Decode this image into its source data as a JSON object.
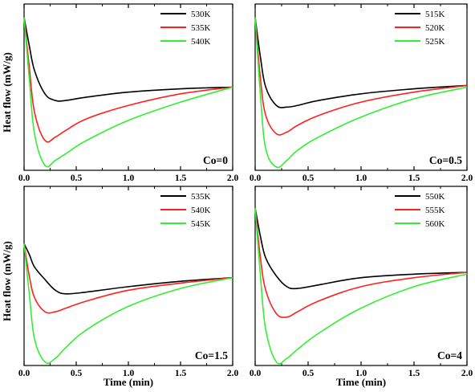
{
  "figure": {
    "ylabel": "Heat flow (mW/g)",
    "xlabel": "Time (min)"
  },
  "chart_data": [
    {
      "type": "line",
      "panel_label": "Co=0",
      "xlabel": "",
      "ylabel": "Heat flow (mW/g)",
      "xlim": [
        0,
        2.0
      ],
      "ylim": [
        0,
        1
      ],
      "xticks": [
        "0.0",
        "0.5",
        "1.0",
        "1.5",
        "2.0"
      ],
      "legend_position": "top-right",
      "series": [
        {
          "name": "530K",
          "color": "#000000",
          "x": [
            0,
            0.05,
            0.1,
            0.2,
            0.3,
            0.4,
            0.6,
            1.0,
            1.5,
            2.0
          ],
          "y": [
            0.92,
            0.75,
            0.6,
            0.46,
            0.42,
            0.42,
            0.44,
            0.47,
            0.49,
            0.5
          ]
        },
        {
          "name": "535K",
          "color": "#ff2020",
          "x": [
            0,
            0.05,
            0.1,
            0.2,
            0.3,
            0.4,
            0.6,
            1.0,
            1.5,
            2.0
          ],
          "y": [
            0.92,
            0.62,
            0.35,
            0.18,
            0.2,
            0.24,
            0.31,
            0.39,
            0.46,
            0.5
          ]
        },
        {
          "name": "540K",
          "color": "#33ee33",
          "x": [
            0,
            0.05,
            0.1,
            0.2,
            0.3,
            0.4,
            0.6,
            1.0,
            1.5,
            2.0
          ],
          "y": [
            0.92,
            0.55,
            0.22,
            0.03,
            0.06,
            0.1,
            0.18,
            0.3,
            0.41,
            0.5
          ]
        }
      ]
    },
    {
      "type": "line",
      "panel_label": "Co=0.5",
      "xlabel": "",
      "ylabel": "",
      "xlim": [
        0,
        2.0
      ],
      "ylim": [
        0,
        1
      ],
      "xticks": [
        "0.0",
        "0.5",
        "1.0",
        "1.5",
        "2.0"
      ],
      "legend_position": "top-right",
      "series": [
        {
          "name": "515K",
          "color": "#000000",
          "x": [
            0,
            0.05,
            0.1,
            0.2,
            0.3,
            0.4,
            0.6,
            1.0,
            1.5,
            2.0
          ],
          "y": [
            0.92,
            0.68,
            0.5,
            0.39,
            0.38,
            0.39,
            0.42,
            0.46,
            0.49,
            0.51
          ]
        },
        {
          "name": "520K",
          "color": "#ff2020",
          "x": [
            0,
            0.05,
            0.1,
            0.2,
            0.3,
            0.4,
            0.6,
            1.0,
            1.5,
            2.0
          ],
          "y": [
            0.92,
            0.55,
            0.33,
            0.22,
            0.23,
            0.27,
            0.33,
            0.41,
            0.47,
            0.51
          ]
        },
        {
          "name": "525K",
          "color": "#33ee33",
          "x": [
            0,
            0.05,
            0.1,
            0.2,
            0.3,
            0.4,
            0.6,
            1.0,
            1.5,
            2.0
          ],
          "y": [
            0.92,
            0.45,
            0.13,
            0.02,
            0.06,
            0.12,
            0.2,
            0.32,
            0.43,
            0.5
          ]
        }
      ]
    },
    {
      "type": "line",
      "panel_label": "Co=1.5",
      "xlabel": "Time (min)",
      "ylabel": "Heat flow (mW/g)",
      "xlim": [
        0,
        2.0
      ],
      "ylim": [
        0,
        1
      ],
      "xticks": [
        "0.0",
        "0.5",
        "1.0",
        "1.5",
        "2.0"
      ],
      "legend_position": "top-right",
      "series": [
        {
          "name": "535K",
          "color": "#000000",
          "x": [
            0,
            0.05,
            0.1,
            0.2,
            0.3,
            0.4,
            0.6,
            1.0,
            1.5,
            2.0
          ],
          "y": [
            0.68,
            0.62,
            0.55,
            0.48,
            0.42,
            0.4,
            0.41,
            0.44,
            0.47,
            0.49
          ]
        },
        {
          "name": "540K",
          "color": "#ff2020",
          "x": [
            0,
            0.05,
            0.1,
            0.2,
            0.3,
            0.4,
            0.6,
            1.0,
            1.5,
            2.0
          ],
          "y": [
            0.68,
            0.5,
            0.38,
            0.3,
            0.3,
            0.32,
            0.36,
            0.42,
            0.46,
            0.49
          ]
        },
        {
          "name": "545K",
          "color": "#33ee33",
          "x": [
            0,
            0.05,
            0.1,
            0.2,
            0.3,
            0.4,
            0.6,
            1.0,
            1.5,
            2.0
          ],
          "y": [
            0.68,
            0.4,
            0.15,
            0.02,
            0.04,
            0.1,
            0.2,
            0.33,
            0.43,
            0.49
          ]
        }
      ]
    },
    {
      "type": "line",
      "panel_label": "Co=4",
      "xlabel": "Time (min)",
      "ylabel": "",
      "xlim": [
        0,
        2.0
      ],
      "ylim": [
        0,
        1
      ],
      "xticks": [
        "0.0",
        "0.5",
        "1.0",
        "1.5",
        "2.0"
      ],
      "legend_position": "top-right",
      "series": [
        {
          "name": "550K",
          "color": "#000000",
          "x": [
            0,
            0.05,
            0.1,
            0.2,
            0.3,
            0.4,
            0.6,
            1.0,
            1.5,
            2.0
          ],
          "y": [
            0.88,
            0.72,
            0.6,
            0.5,
            0.44,
            0.43,
            0.45,
            0.49,
            0.51,
            0.52
          ]
        },
        {
          "name": "555K",
          "color": "#ff2020",
          "x": [
            0,
            0.05,
            0.1,
            0.2,
            0.3,
            0.4,
            0.6,
            1.0,
            1.5,
            2.0
          ],
          "y": [
            0.88,
            0.6,
            0.42,
            0.29,
            0.27,
            0.3,
            0.36,
            0.44,
            0.49,
            0.52
          ]
        },
        {
          "name": "560K",
          "color": "#33ee33",
          "x": [
            0,
            0.05,
            0.1,
            0.2,
            0.3,
            0.4,
            0.6,
            1.0,
            1.5,
            2.0
          ],
          "y": [
            0.88,
            0.5,
            0.2,
            0.02,
            0.04,
            0.09,
            0.18,
            0.32,
            0.44,
            0.51
          ]
        }
      ]
    }
  ]
}
